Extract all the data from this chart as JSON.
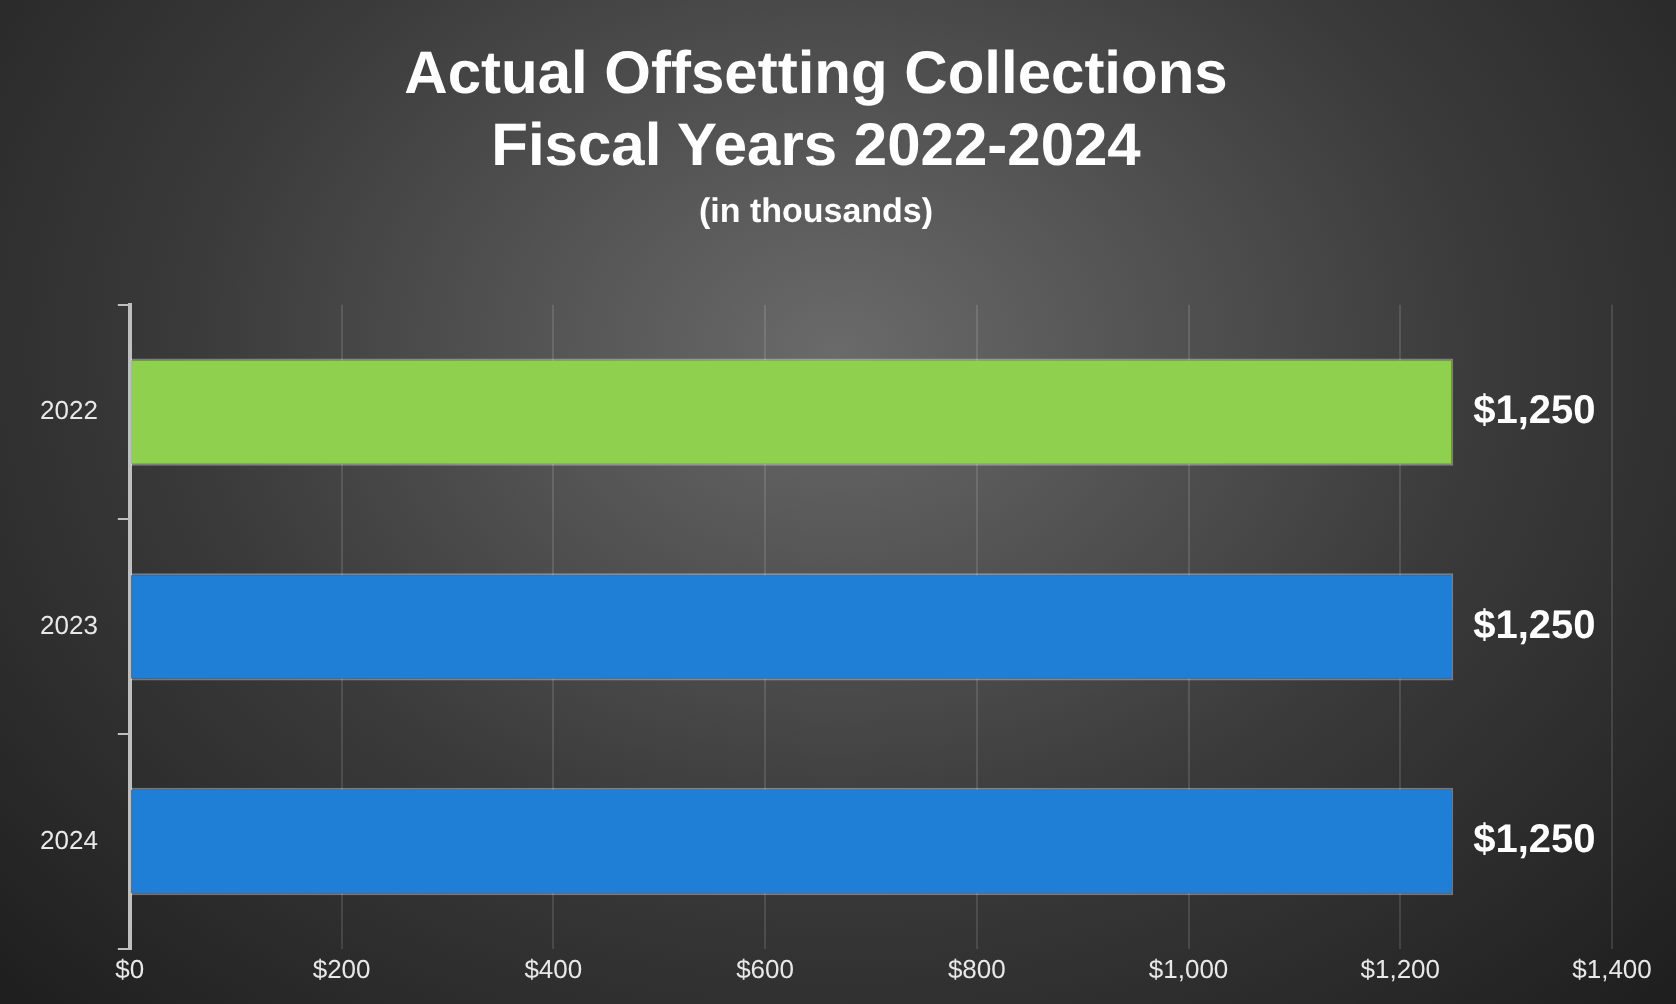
{
  "chart_data": {
    "type": "bar",
    "orientation": "horizontal",
    "title": "Actual Offsetting Collections\nFiscal Years 2022-2024",
    "subtitle": "(in thousands)",
    "categories": [
      "2022",
      "2023",
      "2024"
    ],
    "values": [
      1250,
      1250,
      1250
    ],
    "colors": [
      "#8fd14f",
      "#1f7fd6",
      "#1f7fd6"
    ],
    "value_labels": [
      "$1,250",
      "$1,250",
      "$1,250"
    ],
    "xlim": [
      0,
      1400
    ],
    "xticks": [
      {
        "value": 0,
        "label": "$0"
      },
      {
        "value": 200,
        "label": "$200"
      },
      {
        "value": 400,
        "label": "$400"
      },
      {
        "value": 600,
        "label": "$600"
      },
      {
        "value": 800,
        "label": "$800"
      },
      {
        "value": 1000,
        "label": "$1,000"
      },
      {
        "value": 1200,
        "label": "$1,200"
      },
      {
        "value": 1400,
        "label": "$1,400"
      }
    ],
    "grid": "x",
    "legend": false
  }
}
